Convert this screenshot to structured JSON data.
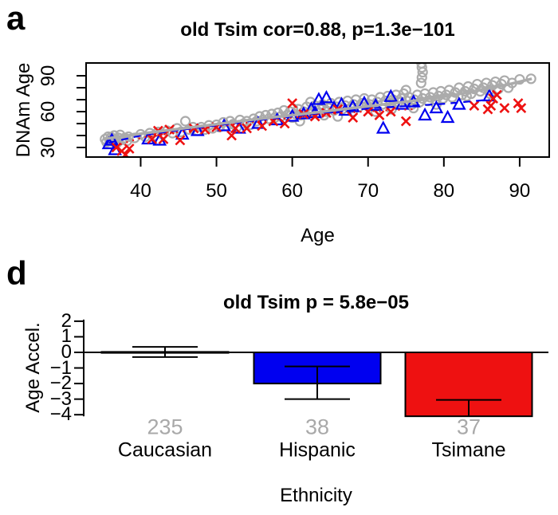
{
  "chart_data": [
    {
      "type": "scatter",
      "panel_letter": "a",
      "title": "old Tsim cor=0.88, p=1.3e−101",
      "xlabel": "Age",
      "ylabel": "DNAm Age",
      "xlim": [
        32.8,
        93.9
      ],
      "ylim": [
        22,
        100.7
      ],
      "xticks": [
        40,
        50,
        60,
        70,
        80,
        90
      ],
      "yticks": [
        30,
        40,
        50,
        60,
        70,
        80,
        90
      ],
      "ytick_labels": [
        30,
        60,
        90
      ],
      "grid": false,
      "series": [
        {
          "name": "Caucasian",
          "marker": "circle",
          "color": "#ABABAB",
          "points": [
            [
              35.3,
              37
            ],
            [
              35.5,
              34.5
            ],
            [
              35.7,
              39
            ],
            [
              35.9,
              36
            ],
            [
              36.1,
              38.5
            ],
            [
              36.3,
              35
            ],
            [
              36.5,
              40
            ],
            [
              36.7,
              37
            ],
            [
              36.9,
              34
            ],
            [
              37.1,
              38
            ],
            [
              37.3,
              40.5
            ],
            [
              37.6,
              36.5
            ],
            [
              37.9,
              38
            ],
            [
              38.2,
              35.5
            ],
            [
              38.4,
              39
            ],
            [
              39.2,
              38
            ],
            [
              40,
              41
            ],
            [
              40.6,
              39
            ],
            [
              41.2,
              42
            ],
            [
              41.8,
              40
            ],
            [
              42.3,
              43
            ],
            [
              42.9,
              41
            ],
            [
              43.5,
              44
            ],
            [
              44.2,
              42
            ],
            [
              44.8,
              46
            ],
            [
              45.3,
              43
            ],
            [
              45.9,
              52
            ],
            [
              46.4,
              45
            ],
            [
              46.9,
              47
            ],
            [
              47.5,
              44
            ],
            [
              48,
              47
            ],
            [
              48.5,
              45
            ],
            [
              49,
              48.5
            ],
            [
              49.5,
              46
            ],
            [
              50,
              49
            ],
            [
              50.4,
              47
            ],
            [
              50.9,
              51
            ],
            [
              51.3,
              48
            ],
            [
              51.8,
              52
            ],
            [
              52.2,
              49.5
            ],
            [
              52.7,
              47
            ],
            [
              53.1,
              53
            ],
            [
              53.6,
              50
            ],
            [
              54,
              52
            ],
            [
              54.5,
              49
            ],
            [
              54.9,
              54
            ],
            [
              55.3,
              52
            ],
            [
              55.7,
              56
            ],
            [
              56.1,
              53
            ],
            [
              56.5,
              57
            ],
            [
              56.9,
              54
            ],
            [
              57.3,
              58
            ],
            [
              57.7,
              55
            ],
            [
              58.1,
              59
            ],
            [
              58.5,
              56
            ],
            [
              58.9,
              61
            ],
            [
              59.3,
              57
            ],
            [
              59.7,
              60
            ],
            [
              60,
              55
            ],
            [
              60.1,
              62.5
            ],
            [
              60.4,
              58
            ],
            [
              60.8,
              62
            ],
            [
              61.1,
              57
            ],
            [
              61.5,
              60
            ],
            [
              61.9,
              64
            ],
            [
              62.2,
              58.5
            ],
            [
              62.6,
              61
            ],
            [
              63,
              65
            ],
            [
              63.3,
              59
            ],
            [
              63.7,
              62
            ],
            [
              64,
              66
            ],
            [
              64.4,
              60
            ],
            [
              64.8,
              63
            ],
            [
              65.1,
              67
            ],
            [
              65.5,
              61
            ],
            [
              65.9,
              64
            ],
            [
              66.2,
              68
            ],
            [
              66.6,
              62
            ],
            [
              67,
              65
            ],
            [
              67.3,
              69
            ],
            [
              67.7,
              63
            ],
            [
              68.1,
              66
            ],
            [
              68.4,
              70
            ],
            [
              68.8,
              64
            ],
            [
              69.2,
              67
            ],
            [
              69.5,
              71
            ],
            [
              69.9,
              65
            ],
            [
              61,
              52
            ],
            [
              66,
              56
            ],
            [
              62.4,
              68
            ],
            [
              68,
              60
            ],
            [
              64.2,
              57
            ],
            [
              70.2,
              66
            ],
            [
              70.5,
              70
            ],
            [
              70.9,
              64
            ],
            [
              71.2,
              68
            ],
            [
              71.6,
              72
            ],
            [
              71.9,
              66
            ],
            [
              72.3,
              69
            ],
            [
              72.6,
              73
            ],
            [
              73,
              67
            ],
            [
              73.3,
              70
            ],
            [
              73.7,
              74
            ],
            [
              74,
              68
            ],
            [
              74.4,
              71
            ],
            [
              74.7,
              75
            ],
            [
              75.1,
              69
            ],
            [
              75.4,
              72
            ],
            [
              75.8,
              66
            ],
            [
              76.1,
              70
            ],
            [
              76.5,
              74
            ],
            [
              76.8,
              68
            ],
            [
              77.2,
              71
            ],
            [
              77.5,
              75
            ],
            [
              77.9,
              69
            ],
            [
              78.2,
              72
            ],
            [
              78.6,
              76
            ],
            [
              78.9,
              70
            ],
            [
              79.3,
              73
            ],
            [
              79.6,
              77
            ],
            [
              79.9,
              71
            ],
            [
              73.1,
              62
            ],
            [
              76,
              63
            ],
            [
              79,
              66
            ],
            [
              71,
              60
            ],
            [
              75,
              78
            ],
            [
              77,
              84
            ],
            [
              77.1,
              88.5
            ],
            [
              77.2,
              93
            ],
            [
              77.1,
              97
            ],
            [
              77.05,
              100.5
            ],
            [
              80.3,
              74
            ],
            [
              80.7,
              78
            ],
            [
              81.1,
              72
            ],
            [
              81.5,
              76
            ],
            [
              82,
              80
            ],
            [
              82.4,
              74
            ],
            [
              82.8,
              77
            ],
            [
              83.2,
              81
            ],
            [
              83.6,
              75
            ],
            [
              84,
              79
            ],
            [
              84.4,
              83
            ],
            [
              84.8,
              77
            ],
            [
              85.2,
              80
            ],
            [
              85.6,
              84
            ],
            [
              86,
              78
            ],
            [
              86.4,
              82
            ],
            [
              86.8,
              85
            ],
            [
              87.2,
              79
            ],
            [
              87.6,
              83
            ],
            [
              88,
              86
            ],
            [
              88.5,
              80
            ],
            [
              89,
              84
            ],
            [
              90,
              87
            ],
            [
              91.5,
              87.5
            ],
            [
              83,
              73
            ],
            [
              86.1,
              75
            ]
          ]
        },
        {
          "name": "Hispanic",
          "marker": "triangle",
          "color": "#0000F0",
          "points": [
            [
              35.8,
              33
            ],
            [
              36.2,
              36
            ],
            [
              36.6,
              28
            ],
            [
              41,
              37
            ],
            [
              42.5,
              36
            ],
            [
              45.5,
              41
            ],
            [
              47.5,
              44
            ],
            [
              51,
              48
            ],
            [
              53,
              46
            ],
            [
              55.5,
              50
            ],
            [
              58,
              53
            ],
            [
              60,
              56
            ],
            [
              61.5,
              58
            ],
            [
              62.5,
              62
            ],
            [
              63,
              59
            ],
            [
              63.5,
              70
            ],
            [
              64.5,
              71.5
            ],
            [
              65.5,
              63
            ],
            [
              66.5,
              66
            ],
            [
              67,
              61
            ],
            [
              68,
              64
            ],
            [
              69.5,
              67
            ],
            [
              71,
              65
            ],
            [
              72,
              46
            ],
            [
              73,
              72.5
            ],
            [
              74.5,
              66
            ],
            [
              76,
              68
            ],
            [
              77.5,
              57
            ],
            [
              79,
              63
            ],
            [
              80.5,
              55
            ],
            [
              82,
              66
            ],
            [
              86,
              73
            ]
          ]
        },
        {
          "name": "Tsimane",
          "marker": "x",
          "color": "#EE1111",
          "points": [
            [
              36.8,
              30
            ],
            [
              37.5,
              27
            ],
            [
              38,
              24
            ],
            [
              38.5,
              29
            ],
            [
              41.5,
              37
            ],
            [
              42.3,
              44
            ],
            [
              43,
              37
            ],
            [
              43.8,
              45
            ],
            [
              45.2,
              36
            ],
            [
              47,
              46
            ],
            [
              48.5,
              45
            ],
            [
              50,
              47
            ],
            [
              52,
              40
            ],
            [
              52.5,
              46
            ],
            [
              54,
              46
            ],
            [
              56,
              48
            ],
            [
              57.5,
              52
            ],
            [
              59,
              50
            ],
            [
              60,
              67
            ],
            [
              61.5,
              58
            ],
            [
              63,
              56
            ],
            [
              64.5,
              59
            ],
            [
              66,
              62
            ],
            [
              68,
              55
            ],
            [
              70,
              60
            ],
            [
              71.5,
              57
            ],
            [
              73,
              60
            ],
            [
              75,
              52
            ],
            [
              84,
              65
            ],
            [
              85.8,
              62
            ],
            [
              86.2,
              65
            ],
            [
              86.5,
              71
            ],
            [
              87,
              74
            ],
            [
              88,
              63
            ],
            [
              89.8,
              67
            ],
            [
              90.2,
              63
            ]
          ]
        }
      ],
      "trend_lines": [
        {
          "name": "Tsimane",
          "style": "dotted",
          "color": "#EE1111",
          "points": [
            [
              36.5,
              31
            ],
            [
              40,
              38
            ],
            [
              45,
              43
            ],
            [
              50,
              47.5
            ],
            [
              55,
              51.5
            ],
            [
              60,
              55
            ],
            [
              64,
              57.5
            ],
            [
              68,
              59.5
            ],
            [
              72,
              61
            ],
            [
              76,
              62
            ]
          ]
        },
        {
          "name": "Hispanic",
          "style": "dashed",
          "color": "#0000F0",
          "points": [
            [
              35.8,
              34
            ],
            [
              40,
              40
            ],
            [
              45,
              44.5
            ],
            [
              50,
              48.5
            ],
            [
              55,
              52.5
            ],
            [
              60,
              56
            ],
            [
              64,
              59
            ],
            [
              68,
              61.5
            ],
            [
              72,
              63.5
            ],
            [
              76,
              65
            ],
            [
              80,
              66.5
            ],
            [
              86,
              70
            ]
          ]
        },
        {
          "name": "Caucasian",
          "style": "solid",
          "color": "#ABABAB",
          "points": [
            [
              35,
              37
            ],
            [
              40,
              41.5
            ],
            [
              45,
              45.5
            ],
            [
              50,
              49.5
            ],
            [
              55,
              53.5
            ],
            [
              60,
              57
            ],
            [
              64,
              60
            ],
            [
              68,
              63
            ],
            [
              72,
              66
            ],
            [
              76,
              69
            ],
            [
              80,
              72.5
            ],
            [
              84,
              77
            ],
            [
              88,
              82
            ],
            [
              91.6,
              87.5
            ]
          ]
        }
      ]
    },
    {
      "type": "bar",
      "panel_letter": "d",
      "title": "old Tsim p = 5.8e−05",
      "xlabel": "Ethnicity",
      "ylabel": "Age Accel.",
      "ylim": [
        -4.35,
        2.3
      ],
      "yticks": [
        2,
        1,
        0,
        -1,
        -2,
        -3,
        -4
      ],
      "categories": [
        "Caucasian",
        "Hispanic",
        "Tsimane"
      ],
      "counts": [
        235,
        38,
        37
      ],
      "values": [
        0.03,
        -2.0,
        -4.1
      ],
      "error_high": [
        0.35,
        -0.9,
        -3.05
      ],
      "error_low": [
        -0.3,
        -3.0,
        -5.2
      ],
      "bar_colors": [
        "#FFFFFF",
        "#0000F0",
        "#EE1111"
      ],
      "count_color": "#A9A9A9",
      "grid": false
    }
  ],
  "colors": {
    "caucasian": "#ABABAB",
    "hispanic": "#0000F0",
    "tsimane": "#EE1111",
    "axis": "#000000",
    "count_gray": "#A9A9A9",
    "background": "#FFFFFF"
  }
}
